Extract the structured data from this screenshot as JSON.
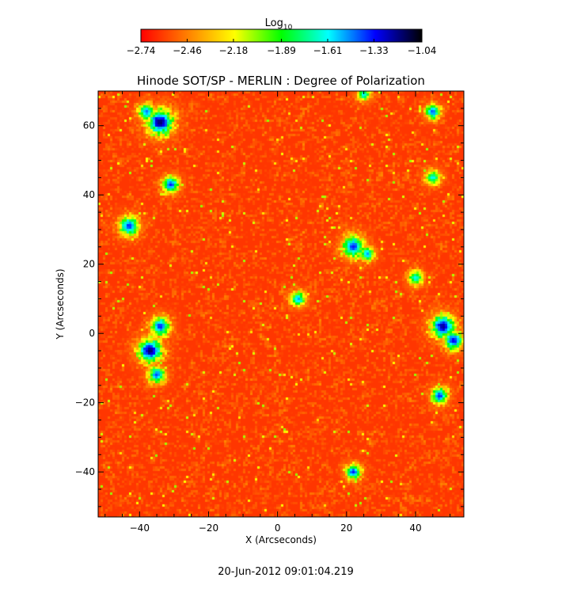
{
  "chart_data": {
    "type": "heatmap",
    "title": "Hinode SOT/SP - MERLIN : Degree of Polarization",
    "xlabel": "X (Arcseconds)",
    "ylabel": "Y (Arcseconds)",
    "xlim": [
      -52,
      54
    ],
    "ylim": [
      -53,
      70
    ],
    "xticks": [
      -40,
      -20,
      0,
      20,
      40
    ],
    "yticks": [
      -40,
      -20,
      0,
      20,
      40,
      60
    ],
    "xtick_labels": [
      "−40",
      "−20",
      "0",
      "20",
      "40"
    ],
    "ytick_labels": [
      "−40",
      "−20",
      "0",
      "20",
      "40",
      "60"
    ],
    "colorbar": {
      "label": "Log",
      "label_subscript": "10",
      "range": [
        -2.74,
        -1.04
      ],
      "ticks": [
        -2.74,
        -2.46,
        -2.18,
        -1.89,
        -1.61,
        -1.33,
        -1.04
      ],
      "tick_labels": [
        "−2.74",
        "−2.46",
        "−2.18",
        "−1.89",
        "−1.61",
        "−1.33",
        "−1.04"
      ],
      "colormap": [
        "#ff0000",
        "#ff8000",
        "#ffff00",
        "#00ff00",
        "#00ffff",
        "#0000ff",
        "#000000"
      ]
    },
    "background_level": -2.62,
    "high_polarization_patches": [
      {
        "x": -34,
        "y": 61,
        "peak": -1.15,
        "radius": 3.5
      },
      {
        "x": -38,
        "y": 64,
        "peak": -1.45,
        "radius": 2.2
      },
      {
        "x": -31,
        "y": 43,
        "peak": -1.35,
        "radius": 2.2
      },
      {
        "x": -43,
        "y": 31,
        "peak": -1.35,
        "radius": 2.6
      },
      {
        "x": -37,
        "y": -5,
        "peak": -1.15,
        "radius": 3.2
      },
      {
        "x": -34,
        "y": 2,
        "peak": -1.35,
        "radius": 2.6
      },
      {
        "x": -35,
        "y": -12,
        "peak": -1.4,
        "radius": 2.2
      },
      {
        "x": 22,
        "y": 25,
        "peak": -1.35,
        "radius": 3.0
      },
      {
        "x": 26,
        "y": 23,
        "peak": -1.5,
        "radius": 2.0
      },
      {
        "x": 6,
        "y": 10,
        "peak": -1.5,
        "radius": 2.0
      },
      {
        "x": 48,
        "y": 2,
        "peak": -1.2,
        "radius": 3.2
      },
      {
        "x": 51,
        "y": -2,
        "peak": -1.3,
        "radius": 2.6
      },
      {
        "x": 47,
        "y": -18,
        "peak": -1.35,
        "radius": 2.2
      },
      {
        "x": 22,
        "y": -40,
        "peak": -1.35,
        "radius": 2.0
      },
      {
        "x": 45,
        "y": 64,
        "peak": -1.4,
        "radius": 2.0
      },
      {
        "x": 45,
        "y": 45,
        "peak": -1.6,
        "radius": 2.0
      },
      {
        "x": 40,
        "y": 16,
        "peak": -1.6,
        "radius": 2.0
      },
      {
        "x": 25,
        "y": 69,
        "peak": -1.6,
        "radius": 1.8
      }
    ]
  },
  "footer": {
    "timestamp": "20-Jun-2012 09:01:04.219"
  }
}
